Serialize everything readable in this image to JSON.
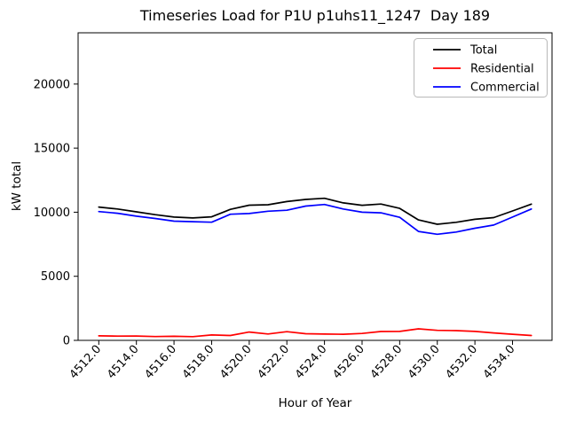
{
  "chart_data": {
    "type": "line",
    "title": "Timeseries Load for P1U p1uhs11_1247  Day 189",
    "xlabel": "Hour of Year",
    "ylabel": "kW total",
    "x": [
      4512,
      4513,
      4514,
      4515,
      4516,
      4517,
      4518,
      4519,
      4520,
      4521,
      4522,
      4523,
      4524,
      4525,
      4526,
      4527,
      4528,
      4529,
      4530,
      4531,
      4532,
      4533,
      4534,
      4535
    ],
    "series": [
      {
        "name": "Total",
        "color": "#000000",
        "values": [
          10400,
          10250,
          10030,
          9810,
          9620,
          9550,
          9640,
          10220,
          10550,
          10580,
          10830,
          11000,
          11090,
          10730,
          10540,
          10640,
          10300,
          9400,
          9060,
          9210,
          9450,
          9580,
          10100,
          10630
        ]
      },
      {
        "name": "Residential",
        "color": "#ff0000",
        "values": [
          350,
          330,
          340,
          300,
          320,
          290,
          420,
          380,
          650,
          500,
          680,
          520,
          490,
          480,
          540,
          690,
          700,
          900,
          780,
          760,
          700,
          580,
          480,
          380
        ]
      },
      {
        "name": "Commercial",
        "color": "#0000ff",
        "values": [
          10050,
          9920,
          9690,
          9510,
          9300,
          9260,
          9220,
          9840,
          9900,
          10080,
          10150,
          10480,
          10600,
          10250,
          10000,
          9950,
          9600,
          8500,
          8280,
          8450,
          8750,
          9000,
          9620,
          10250
        ]
      }
    ],
    "xtick_labels": [
      "4512.0",
      "4514.0",
      "4516.0",
      "4518.0",
      "4520.0",
      "4522.0",
      "4524.0",
      "4526.0",
      "4528.0",
      "4530.0",
      "4532.0",
      "4534.0"
    ],
    "ytick_labels": [
      "0",
      "5000",
      "10000",
      "15000",
      "20000"
    ],
    "ytick_values": [
      0,
      5000,
      10000,
      15000,
      20000
    ],
    "xlim": [
      4510.9,
      4536.1
    ],
    "ylim": [
      0,
      24000
    ],
    "grid": false,
    "legend_position": "upper right",
    "legend": [
      "Total",
      "Residential",
      "Commercial"
    ]
  },
  "colors": {
    "axes_edge": "#000000",
    "legend_border": "#b8b8b8",
    "background": "#ffffff"
  }
}
